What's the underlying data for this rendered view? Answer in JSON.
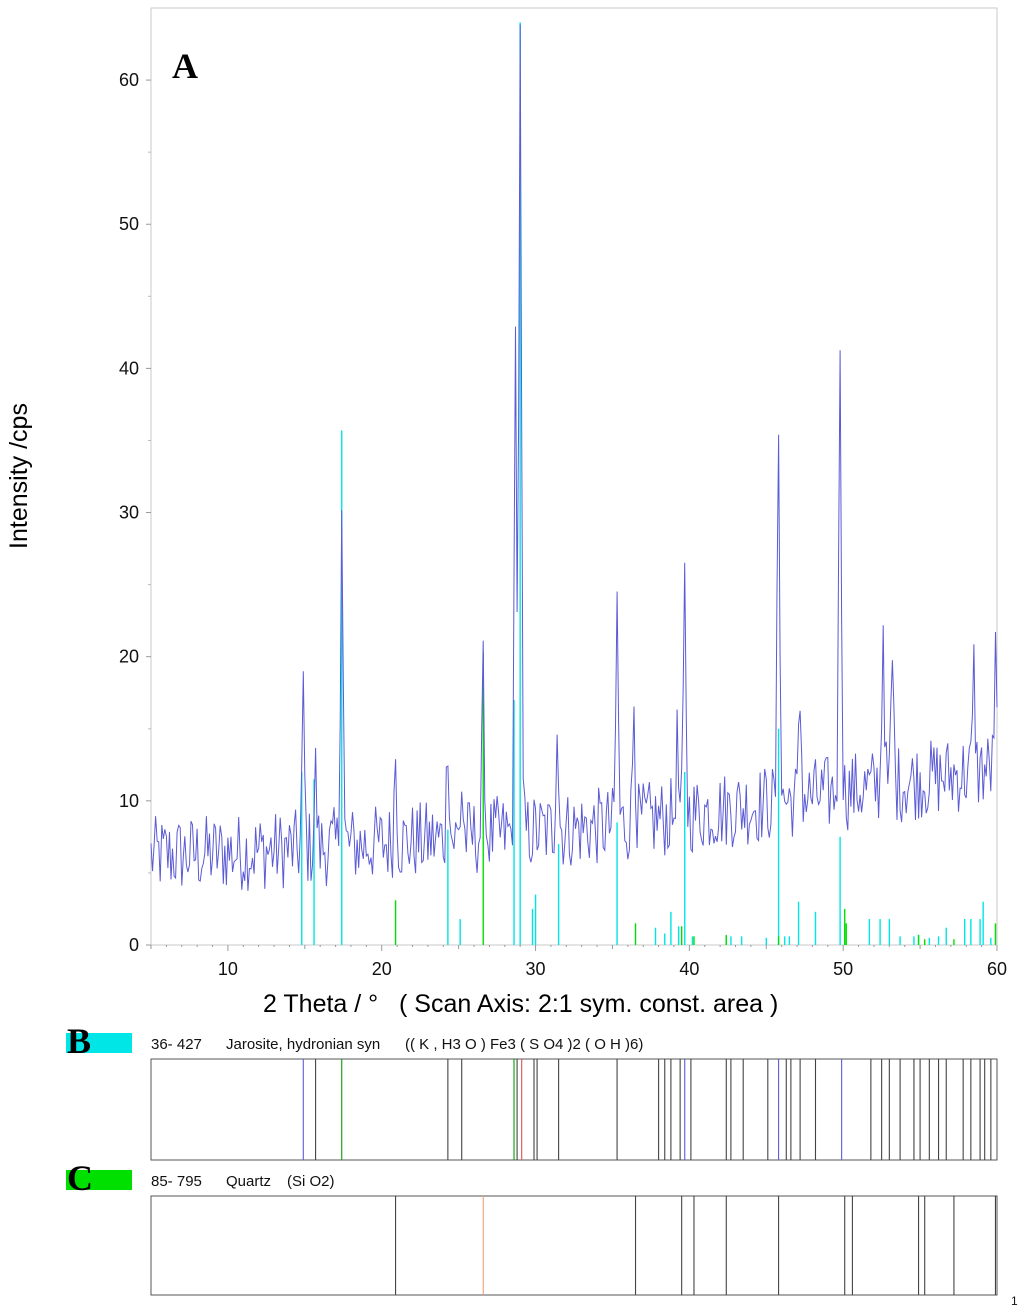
{
  "chart_data": {
    "type": "line",
    "panel_label": "A",
    "xlabel": "2 Theta / °   ( Scan Axis: 2:1 sym. const. area )",
    "ylabel": "Intensity /cps",
    "xlim": [
      5,
      60
    ],
    "ylim": [
      0,
      65
    ],
    "x_ticks": [
      10,
      20,
      30,
      40,
      50,
      60
    ],
    "y_ticks": [
      0,
      10,
      20,
      30,
      40,
      50,
      60
    ],
    "grid": false,
    "pattern_color": "#5b5bd6",
    "pattern_peaks": [
      {
        "x": 14.9,
        "y": 17.0
      },
      {
        "x": 15.7,
        "y": 12.0
      },
      {
        "x": 17.4,
        "y": 31.5
      },
      {
        "x": 20.9,
        "y": 13.5
      },
      {
        "x": 24.3,
        "y": 15.0
      },
      {
        "x": 25.2,
        "y": 11.0
      },
      {
        "x": 26.6,
        "y": 18.5
      },
      {
        "x": 28.7,
        "y": 41.5
      },
      {
        "x": 29.0,
        "y": 65.0
      },
      {
        "x": 31.4,
        "y": 16.0
      },
      {
        "x": 35.3,
        "y": 23.5
      },
      {
        "x": 36.4,
        "y": 17.5
      },
      {
        "x": 39.2,
        "y": 14.0
      },
      {
        "x": 39.7,
        "y": 25.0
      },
      {
        "x": 45.8,
        "y": 36.5
      },
      {
        "x": 47.2,
        "y": 17.0
      },
      {
        "x": 49.8,
        "y": 42.5
      },
      {
        "x": 52.6,
        "y": 22.5
      },
      {
        "x": 53.2,
        "y": 20.0
      },
      {
        "x": 58.5,
        "y": 19.0
      },
      {
        "x": 59.9,
        "y": 19.5
      }
    ],
    "reference_series": [
      {
        "label": "B",
        "color": "#00e5e5",
        "card_number": "36- 427",
        "name": "Jarosite, hydronian syn",
        "formula": "(( K , H3 O ) Fe3 ( S O4 )2 ( O H )6)",
        "sticks": [
          {
            "x": 14.8,
            "y": 12.0
          },
          {
            "x": 15.6,
            "y": 11.5
          },
          {
            "x": 17.4,
            "y": 35.7
          },
          {
            "x": 24.3,
            "y": 8.0
          },
          {
            "x": 25.1,
            "y": 1.8
          },
          {
            "x": 28.6,
            "y": 17.0
          },
          {
            "x": 29.0,
            "y": 64.0
          },
          {
            "x": 29.8,
            "y": 2.5
          },
          {
            "x": 30.0,
            "y": 3.5
          },
          {
            "x": 31.5,
            "y": 7.0
          },
          {
            "x": 35.3,
            "y": 8.5
          },
          {
            "x": 37.8,
            "y": 1.2
          },
          {
            "x": 38.4,
            "y": 0.8
          },
          {
            "x": 38.8,
            "y": 2.3
          },
          {
            "x": 39.3,
            "y": 1.3
          },
          {
            "x": 39.7,
            "y": 12.0
          },
          {
            "x": 40.2,
            "y": 0.6
          },
          {
            "x": 42.4,
            "y": 0.6
          },
          {
            "x": 42.7,
            "y": 0.6
          },
          {
            "x": 43.4,
            "y": 0.6
          },
          {
            "x": 45.0,
            "y": 0.5
          },
          {
            "x": 45.8,
            "y": 15.0
          },
          {
            "x": 46.2,
            "y": 0.6
          },
          {
            "x": 46.5,
            "y": 0.6
          },
          {
            "x": 47.1,
            "y": 3.0
          },
          {
            "x": 48.2,
            "y": 2.3
          },
          {
            "x": 49.8,
            "y": 7.5
          },
          {
            "x": 51.7,
            "y": 1.8
          },
          {
            "x": 52.4,
            "y": 1.8
          },
          {
            "x": 53.0,
            "y": 1.8
          },
          {
            "x": 53.7,
            "y": 0.6
          },
          {
            "x": 54.6,
            "y": 0.6
          },
          {
            "x": 54.9,
            "y": 0.7
          },
          {
            "x": 55.6,
            "y": 0.5
          },
          {
            "x": 56.2,
            "y": 0.6
          },
          {
            "x": 56.7,
            "y": 1.2
          },
          {
            "x": 57.9,
            "y": 1.8
          },
          {
            "x": 58.3,
            "y": 1.8
          },
          {
            "x": 58.9,
            "y": 1.8
          },
          {
            "x": 59.1,
            "y": 3.0
          },
          {
            "x": 59.6,
            "y": 0.5
          }
        ]
      },
      {
        "label": "C",
        "color": "#00e000",
        "card_number": "85- 795",
        "name": "Quartz",
        "formula": "(Si O2)",
        "sticks": [
          {
            "x": 20.9,
            "y": 3.1
          },
          {
            "x": 26.6,
            "y": 20.3
          },
          {
            "x": 36.5,
            "y": 1.5
          },
          {
            "x": 39.5,
            "y": 1.3
          },
          {
            "x": 40.3,
            "y": 0.6
          },
          {
            "x": 42.4,
            "y": 0.7
          },
          {
            "x": 45.8,
            "y": 0.6
          },
          {
            "x": 50.1,
            "y": 2.5
          },
          {
            "x": 50.2,
            "y": 1.5
          },
          {
            "x": 54.9,
            "y": 0.7
          },
          {
            "x": 55.3,
            "y": 0.4
          },
          {
            "x": 57.2,
            "y": 0.4
          },
          {
            "x": 59.9,
            "y": 1.5
          }
        ]
      }
    ],
    "strip_lines_b": [
      {
        "x": 14.9,
        "color": "#5b5bd6"
      },
      {
        "x": 15.7,
        "color": "#444444"
      },
      {
        "x": 17.4,
        "color": "#00a000"
      },
      {
        "x": 24.3,
        "color": "#444444"
      },
      {
        "x": 25.2,
        "color": "#444444"
      },
      {
        "x": 28.6,
        "color": "#00a000"
      },
      {
        "x": 28.8,
        "color": "#444444"
      },
      {
        "x": 29.1,
        "color": "#e05050"
      },
      {
        "x": 29.9,
        "color": "#444444"
      },
      {
        "x": 30.1,
        "color": "#444444"
      },
      {
        "x": 31.5,
        "color": "#444444"
      },
      {
        "x": 35.3,
        "color": "#444444"
      },
      {
        "x": 38.0,
        "color": "#444444"
      },
      {
        "x": 38.4,
        "color": "#444444"
      },
      {
        "x": 38.8,
        "color": "#444444"
      },
      {
        "x": 39.4,
        "color": "#444444"
      },
      {
        "x": 39.7,
        "color": "#5b5bd6"
      },
      {
        "x": 40.1,
        "color": "#444444"
      },
      {
        "x": 42.4,
        "color": "#444444"
      },
      {
        "x": 42.7,
        "color": "#444444"
      },
      {
        "x": 43.5,
        "color": "#444444"
      },
      {
        "x": 45.1,
        "color": "#444444"
      },
      {
        "x": 45.8,
        "color": "#5b5bd6"
      },
      {
        "x": 46.3,
        "color": "#444444"
      },
      {
        "x": 46.6,
        "color": "#444444"
      },
      {
        "x": 47.2,
        "color": "#444444"
      },
      {
        "x": 48.2,
        "color": "#444444"
      },
      {
        "x": 49.9,
        "color": "#5b5bd6"
      },
      {
        "x": 51.8,
        "color": "#444444"
      },
      {
        "x": 52.5,
        "color": "#444444"
      },
      {
        "x": 53.0,
        "color": "#444444"
      },
      {
        "x": 53.7,
        "color": "#444444"
      },
      {
        "x": 54.6,
        "color": "#444444"
      },
      {
        "x": 55.0,
        "color": "#444444"
      },
      {
        "x": 55.6,
        "color": "#444444"
      },
      {
        "x": 56.2,
        "color": "#444444"
      },
      {
        "x": 56.7,
        "color": "#444444"
      },
      {
        "x": 57.8,
        "color": "#444444"
      },
      {
        "x": 58.3,
        "color": "#444444"
      },
      {
        "x": 58.9,
        "color": "#444444"
      },
      {
        "x": 59.2,
        "color": "#444444"
      },
      {
        "x": 59.6,
        "color": "#444444"
      }
    ],
    "strip_lines_c": [
      {
        "x": 20.9,
        "color": "#444444"
      },
      {
        "x": 26.6,
        "color": "#f0a070"
      },
      {
        "x": 36.5,
        "color": "#444444"
      },
      {
        "x": 39.5,
        "color": "#444444"
      },
      {
        "x": 40.3,
        "color": "#444444"
      },
      {
        "x": 42.4,
        "color": "#444444"
      },
      {
        "x": 45.8,
        "color": "#444444"
      },
      {
        "x": 50.1,
        "color": "#444444"
      },
      {
        "x": 50.6,
        "color": "#444444"
      },
      {
        "x": 54.9,
        "color": "#444444"
      },
      {
        "x": 55.3,
        "color": "#444444"
      },
      {
        "x": 57.2,
        "color": "#444444"
      },
      {
        "x": 59.9,
        "color": "#444444"
      }
    ]
  },
  "corner_mark": "1"
}
